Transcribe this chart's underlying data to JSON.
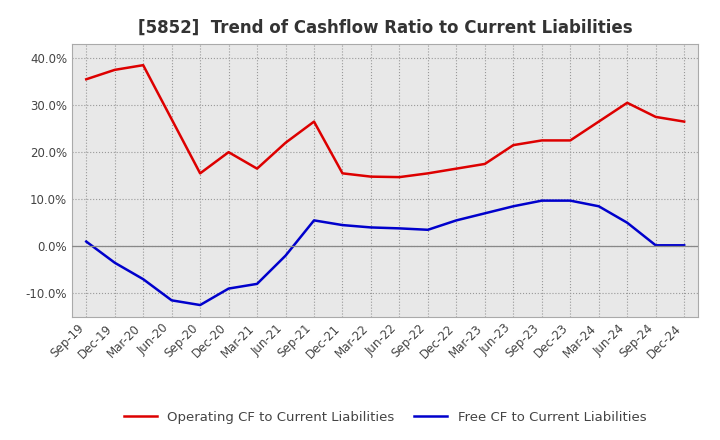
{
  "title": "[5852]  Trend of Cashflow Ratio to Current Liabilities",
  "x_labels": [
    "Sep-19",
    "Dec-19",
    "Mar-20",
    "Jun-20",
    "Sep-20",
    "Dec-20",
    "Mar-21",
    "Jun-21",
    "Sep-21",
    "Dec-21",
    "Mar-22",
    "Jun-22",
    "Sep-22",
    "Dec-22",
    "Mar-23",
    "Jun-23",
    "Sep-23",
    "Dec-23",
    "Mar-24",
    "Jun-24",
    "Sep-24",
    "Dec-24"
  ],
  "operating_cf": [
    0.355,
    0.375,
    0.385,
    0.27,
    0.155,
    0.2,
    0.165,
    0.22,
    0.265,
    0.155,
    0.148,
    0.147,
    0.155,
    0.165,
    0.175,
    0.215,
    0.225,
    0.225,
    0.265,
    0.305,
    0.275,
    0.265
  ],
  "free_cf": [
    0.01,
    -0.035,
    -0.07,
    -0.115,
    -0.125,
    -0.09,
    -0.08,
    -0.02,
    0.055,
    0.045,
    0.04,
    0.038,
    0.035,
    0.055,
    0.07,
    0.085,
    0.097,
    0.097,
    0.085,
    0.05,
    0.002,
    0.002
  ],
  "operating_cf_color": "#dd0000",
  "free_cf_color": "#0000cc",
  "ylim": [
    -0.15,
    0.43
  ],
  "yticks": [
    -0.1,
    0.0,
    0.1,
    0.2,
    0.3,
    0.4
  ],
  "background_color": "#ffffff",
  "plot_bg_color": "#e8e8e8",
  "grid_color": "#999999",
  "legend_operating": "Operating CF to Current Liabilities",
  "legend_free": "Free CF to Current Liabilities",
  "title_fontsize": 12,
  "axis_fontsize": 8.5,
  "legend_fontsize": 9.5,
  "text_color": "#444444"
}
